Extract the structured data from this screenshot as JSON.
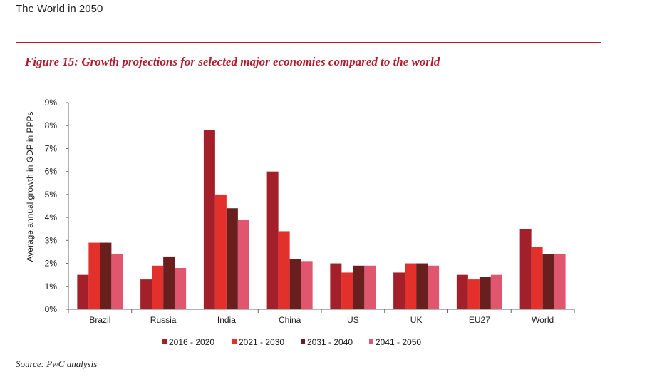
{
  "page": {
    "header_title": "The World in 2050",
    "figure_title": "Figure 15: Growth projections for selected major economies compared to the world",
    "source": "Source: PwC analysis"
  },
  "chart_data": {
    "type": "bar",
    "title": "Figure 15: Growth projections for selected major economies compared to the world",
    "xlabel": "",
    "ylabel": "Average annual growth in GDP in PPPs",
    "ylim": [
      0,
      9
    ],
    "yticks": [
      "0%",
      "1%",
      "2%",
      "3%",
      "4%",
      "5%",
      "6%",
      "7%",
      "8%",
      "9%"
    ],
    "grid": false,
    "legend_position": "bottom",
    "categories": [
      "Brazil",
      "Russia",
      "India",
      "China",
      "US",
      "UK",
      "EU27",
      "World"
    ],
    "series": [
      {
        "name": "2016 - 2020",
        "color": "#a31f2a",
        "values": [
          1.5,
          1.3,
          7.8,
          6.0,
          2.0,
          1.6,
          1.5,
          3.5
        ]
      },
      {
        "name": "2021 - 2030",
        "color": "#e3302a",
        "values": [
          2.9,
          1.9,
          5.0,
          3.4,
          1.6,
          2.0,
          1.3,
          2.7
        ]
      },
      {
        "name": "2031 - 2040",
        "color": "#6a1f1f",
        "values": [
          2.9,
          2.3,
          4.4,
          2.2,
          1.9,
          2.0,
          1.4,
          2.4
        ]
      },
      {
        "name": "2041 - 2050",
        "color": "#e0566f",
        "values": [
          2.4,
          1.8,
          3.9,
          2.1,
          1.9,
          1.9,
          1.5,
          2.4
        ]
      }
    ]
  }
}
